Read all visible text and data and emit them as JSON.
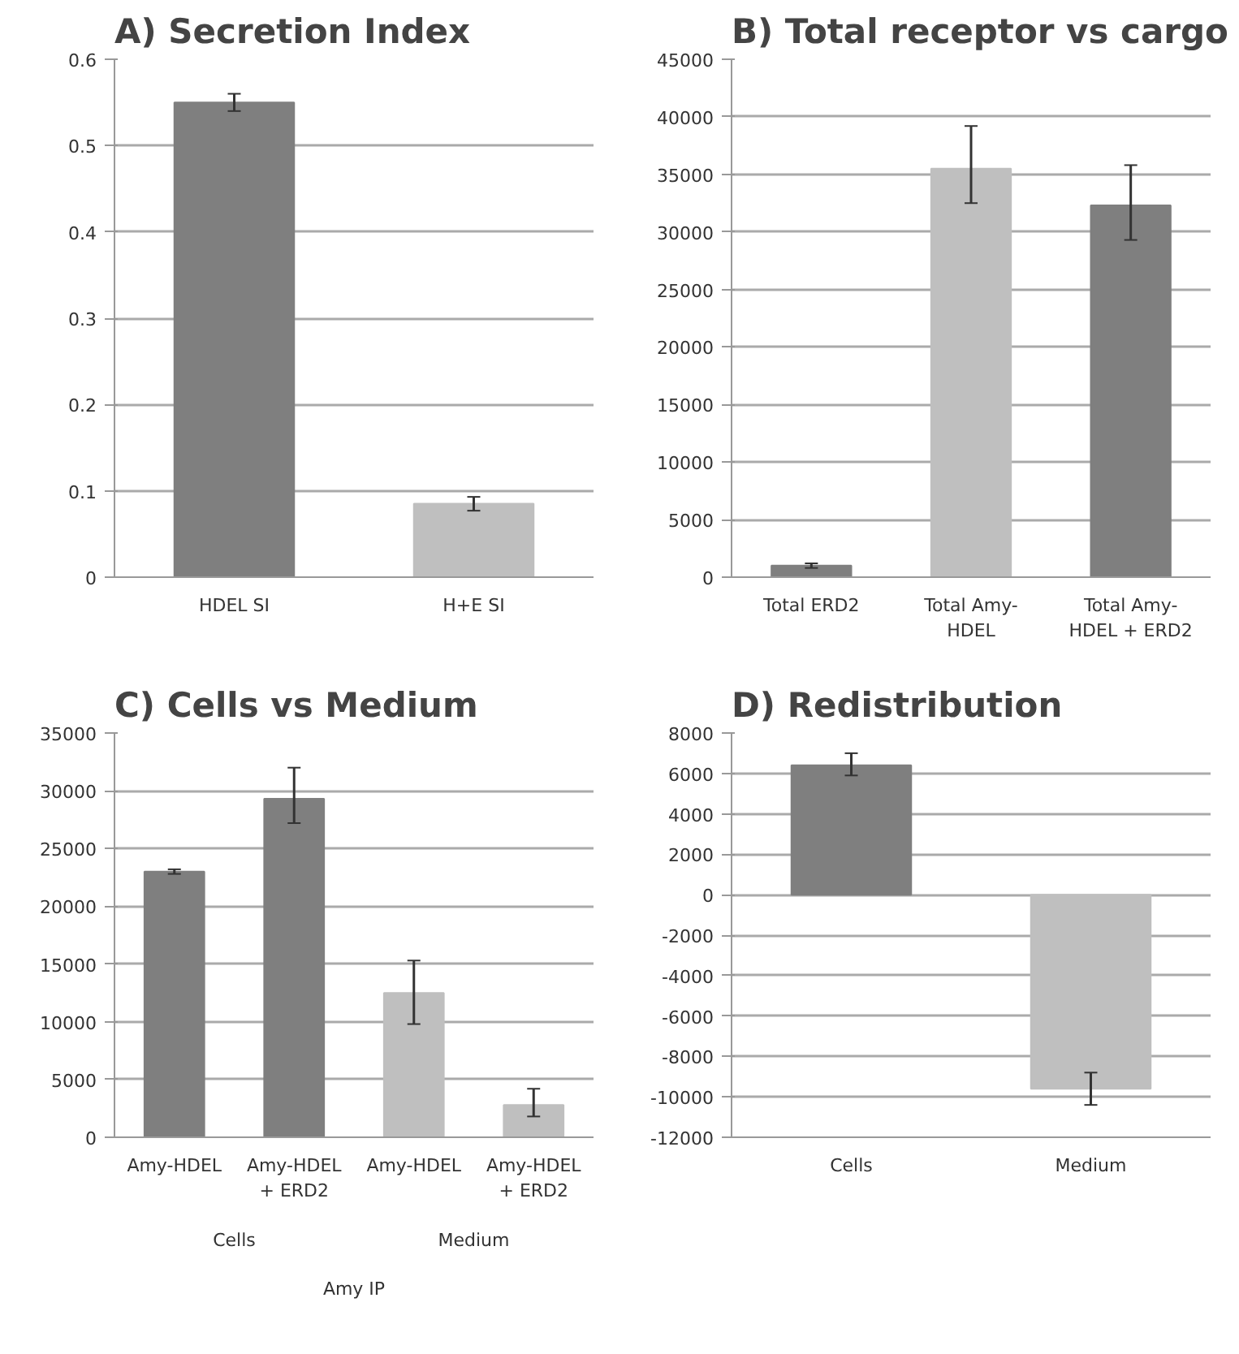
{
  "chart_data": [
    {
      "type": "bar",
      "title": "A) Secretion Index",
      "categories": [
        "HDEL SI",
        "H+E SI"
      ],
      "values": [
        0.55,
        0.085
      ],
      "colors": [
        "#7f7f7f",
        "#bfbfbf"
      ],
      "errors": [
        0.01,
        0.008
      ],
      "ylim": [
        0,
        0.6
      ],
      "yticks": [
        0,
        0.1,
        0.2,
        0.3,
        0.4,
        0.5,
        0.6
      ],
      "grid": "y"
    },
    {
      "type": "bar",
      "title": "B)  Total receptor vs cargo",
      "categories": [
        "Total ERD2",
        "Total Amy-\nHDEL",
        "Total Amy-\nHDEL + ERD2"
      ],
      "values": [
        1000,
        35500,
        32300
      ],
      "colors": [
        "#7f7f7f",
        "#bfbfbf",
        "#7f7f7f"
      ],
      "errors": [
        200,
        [
          32500,
          39200
        ],
        [
          29300,
          35800
        ]
      ],
      "ylim": [
        0,
        45000
      ],
      "yticks": [
        0,
        5000,
        10000,
        15000,
        20000,
        25000,
        30000,
        35000,
        40000,
        45000
      ],
      "grid": "y"
    },
    {
      "type": "bar",
      "title": "C)        Cells vs Medium",
      "categories": [
        "Amy-HDEL",
        "Amy-HDEL\n+ ERD2",
        "Amy-HDEL",
        "Amy-HDEL\n+ ERD2"
      ],
      "values": [
        23000,
        29300,
        12500,
        2800
      ],
      "colors": [
        "#7f7f7f",
        "#7f7f7f",
        "#bfbfbf",
        "#bfbfbf"
      ],
      "errors": [
        200,
        [
          27200,
          32000
        ],
        [
          9800,
          15300
        ],
        [
          1800,
          4200
        ]
      ],
      "ylim": [
        0,
        35000
      ],
      "yticks": [
        0,
        5000,
        10000,
        15000,
        20000,
        25000,
        30000,
        35000
      ],
      "grid": "y",
      "annotations": [
        "Cells",
        "Medium",
        "Amy IP"
      ]
    },
    {
      "type": "bar",
      "title": "D)  Redistribution",
      "categories": [
        "Cells",
        "Medium"
      ],
      "values": [
        6400,
        -9600
      ],
      "colors": [
        "#7f7f7f",
        "#bfbfbf"
      ],
      "errors": [
        [
          5900,
          7000
        ],
        [
          -10400,
          -8800
        ]
      ],
      "ylim": [
        -12000,
        8000
      ],
      "yticks": [
        -12000,
        -10000,
        -8000,
        -6000,
        -4000,
        -2000,
        0,
        2000,
        4000,
        6000,
        8000
      ],
      "grid": "y"
    }
  ]
}
